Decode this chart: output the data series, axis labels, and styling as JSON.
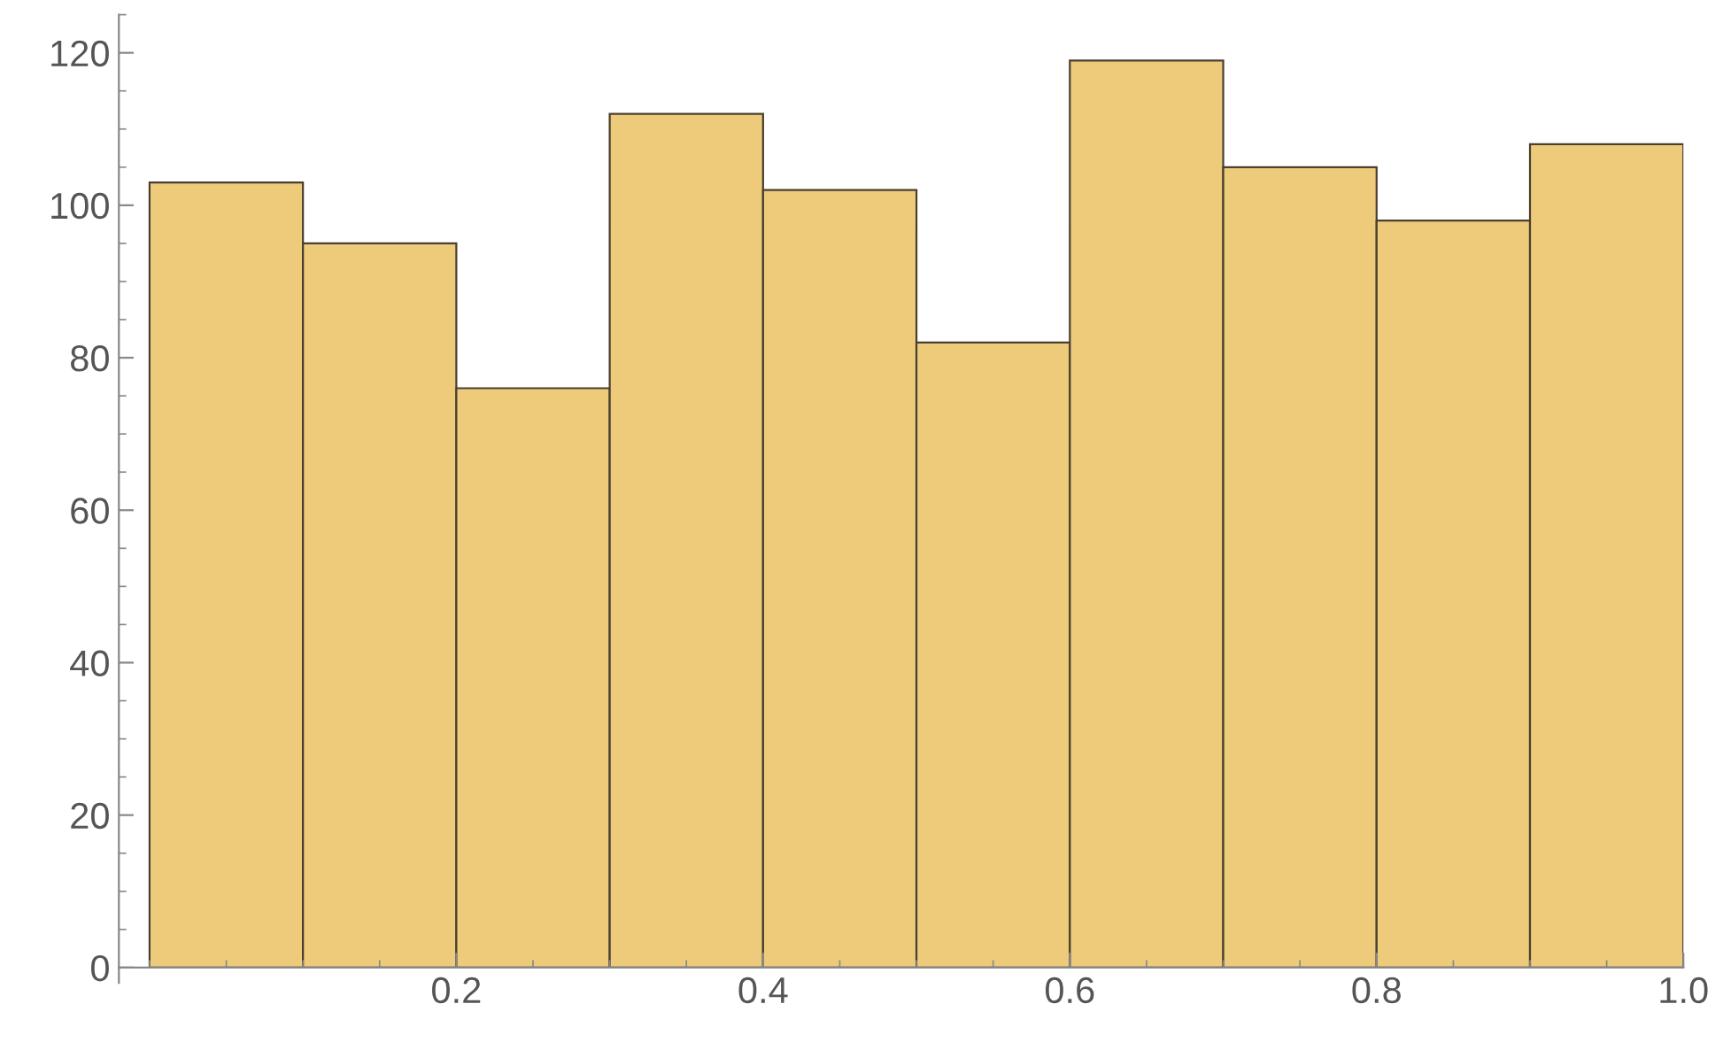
{
  "chart_data": {
    "type": "histogram",
    "bins": [
      0,
      0.1,
      0.2,
      0.3,
      0.4,
      0.5,
      0.6,
      0.7,
      0.8,
      0.9,
      1.0
    ],
    "values": [
      103,
      95,
      76,
      112,
      102,
      82,
      119,
      105,
      98,
      108
    ],
    "color": "#edcb7a",
    "xlim": [
      -0.02,
      1.0
    ],
    "xticks": [
      0.2,
      0.4,
      0.6,
      0.8,
      {
        "value": 1,
        "label": "1.0"
      }
    ],
    "ylim": [
      -2,
      125
    ],
    "yticks": [
      0,
      20,
      40,
      60,
      80,
      100,
      120
    ],
    "grid": false
  }
}
